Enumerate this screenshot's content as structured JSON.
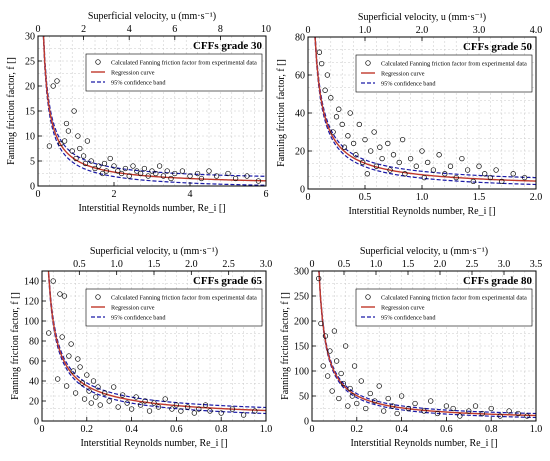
{
  "colors": {
    "regression": "#c0392b",
    "confidence": "#1a1aa6",
    "points": "#000000",
    "grid": "#c8c8c8"
  },
  "chart_data": [
    {
      "type": "scatter",
      "title": "CFFs grade 30",
      "xlabel": "Interstitial Reynolds number, Re_i []",
      "ylabel": "Fanning friction factor, f []",
      "top_xlabel": "Superficial velocity, u (mm·s⁻¹)",
      "xlim": [
        0,
        6
      ],
      "ylim": [
        0,
        30
      ],
      "xticks": [
        0,
        2,
        4,
        6
      ],
      "yticks": [
        0,
        5,
        10,
        15,
        20,
        25,
        30
      ],
      "top_xlim": [
        0,
        10
      ],
      "top_xticks": [
        0,
        2,
        4,
        6,
        8,
        10
      ],
      "grid": true,
      "legend_position": "top-right",
      "legend": {
        "points": "Calculated Fanning friction factor from experimental data",
        "regression": "Regression curve",
        "confidence": "95% confidence band"
      },
      "regression": {
        "a": 5.2,
        "b": 0.9,
        "band": 0.9
      },
      "series": [
        {
          "name": "Calculated Fanning friction factor from experimental data",
          "x": [
            0.3,
            0.4,
            0.5,
            0.6,
            0.7,
            0.75,
            0.8,
            0.9,
            0.95,
            1.0,
            1.05,
            1.1,
            1.2,
            1.25,
            1.3,
            1.4,
            1.5,
            1.6,
            1.7,
            1.75,
            1.8,
            1.9,
            2.0,
            2.1,
            2.2,
            2.3,
            2.4,
            2.5,
            2.6,
            2.7,
            2.8,
            2.9,
            3.0,
            3.1,
            3.2,
            3.3,
            3.4,
            3.5,
            3.6,
            3.8,
            4.0,
            4.2,
            4.3,
            4.5,
            4.7,
            5.0,
            5.2,
            5.5,
            5.8
          ],
          "y": [
            8.0,
            20.0,
            21.0,
            8.5,
            9.0,
            12.5,
            11.0,
            7.0,
            15.0,
            5.5,
            10.0,
            7.5,
            6.0,
            4.5,
            9.0,
            5.0,
            3.5,
            4.0,
            2.5,
            4.5,
            3.0,
            5.5,
            4.0,
            3.0,
            2.5,
            3.5,
            2.0,
            4.0,
            3.0,
            2.5,
            3.5,
            2.0,
            3.0,
            2.5,
            4.0,
            2.0,
            3.0,
            1.5,
            2.5,
            3.0,
            2.0,
            2.5,
            1.5,
            3.0,
            2.0,
            2.5,
            1.5,
            2.0,
            1.0
          ]
        }
      ]
    },
    {
      "type": "scatter",
      "title": "CFFs grade 50",
      "xlabel": "Interstitial Reynolds number, Re_i []",
      "ylabel": "Fanning friction factor, f []",
      "top_xlabel": "Superficial velocity, u (mm·s⁻¹)",
      "xlim": [
        0,
        2
      ],
      "ylim": [
        0,
        80
      ],
      "xticks": [
        0,
        0.5,
        1.0,
        1.5,
        2.0
      ],
      "yticks": [
        0,
        20,
        40,
        60,
        80
      ],
      "top_xlim": [
        0,
        4
      ],
      "top_xticks": [
        0,
        1.0,
        2.0,
        3.0,
        4.0
      ],
      "grid": true,
      "legend_position": "top-right",
      "legend": {
        "points": "Calculated Fanning friction factor from experimental data",
        "regression": "Regression curve",
        "confidence": "95% confidence band"
      },
      "regression": {
        "a": 7.5,
        "b": 0.85,
        "band": 1.8
      },
      "series": [
        {
          "name": "Calculated Fanning friction factor from experimental data",
          "x": [
            0.1,
            0.12,
            0.15,
            0.17,
            0.2,
            0.22,
            0.25,
            0.27,
            0.3,
            0.32,
            0.35,
            0.37,
            0.4,
            0.42,
            0.45,
            0.48,
            0.5,
            0.52,
            0.55,
            0.58,
            0.6,
            0.63,
            0.65,
            0.7,
            0.72,
            0.75,
            0.8,
            0.83,
            0.85,
            0.9,
            0.95,
            1.0,
            1.02,
            1.05,
            1.1,
            1.15,
            1.2,
            1.25,
            1.3,
            1.35,
            1.4,
            1.45,
            1.5,
            1.55,
            1.6,
            1.65,
            1.7,
            1.8,
            1.9
          ],
          "y": [
            72.0,
            66.0,
            52.0,
            60.0,
            48.0,
            30.0,
            38.0,
            42.0,
            34.0,
            22.0,
            28.0,
            40.0,
            24.0,
            18.0,
            34.0,
            14.0,
            26.0,
            8.0,
            20.0,
            30.0,
            12.0,
            22.0,
            16.0,
            24.0,
            10.0,
            18.0,
            14.0,
            26.0,
            8.0,
            16.0,
            12.0,
            20.0,
            6.0,
            14.0,
            10.0,
            18.0,
            8.0,
            12.0,
            6.0,
            16.0,
            10.0,
            4.0,
            12.0,
            8.0,
            6.0,
            10.0,
            4.0,
            8.0,
            6.0
          ]
        }
      ]
    },
    {
      "type": "scatter",
      "title": "CFFs grade 65",
      "xlabel": "Interstitial Reynolds number, Re_i []",
      "ylabel": "Fanning friction factor, f []",
      "top_xlabel": "Superficial velocity, u (mm·s⁻¹)",
      "xlim": [
        0,
        1
      ],
      "ylim": [
        0,
        150
      ],
      "xticks": [
        0,
        0.2,
        0.4,
        0.6,
        0.8,
        1.0
      ],
      "yticks": [
        0,
        20,
        40,
        60,
        80,
        100,
        120,
        140
      ],
      "top_xlim": [
        0,
        3
      ],
      "top_xticks": [
        0.5,
        1.0,
        1.5,
        2.0,
        2.5,
        3.0
      ],
      "grid": true,
      "legend_position": "top-right",
      "legend": {
        "points": "Calculated Fanning friction factor from experimental data",
        "regression": "Regression curve",
        "confidence": "95% confidence band"
      },
      "regression": {
        "a": 10.5,
        "b": 0.75,
        "band": 3.0
      },
      "series": [
        {
          "name": "Calculated Fanning friction factor from experimental data",
          "x": [
            0.03,
            0.05,
            0.07,
            0.08,
            0.09,
            0.1,
            0.11,
            0.12,
            0.13,
            0.14,
            0.15,
            0.16,
            0.17,
            0.18,
            0.19,
            0.2,
            0.21,
            0.22,
            0.23,
            0.24,
            0.25,
            0.26,
            0.28,
            0.3,
            0.32,
            0.34,
            0.36,
            0.38,
            0.4,
            0.42,
            0.44,
            0.46,
            0.48,
            0.5,
            0.52,
            0.55,
            0.58,
            0.6,
            0.62,
            0.65,
            0.68,
            0.7,
            0.73,
            0.75,
            0.8,
            0.85,
            0.9,
            0.95
          ],
          "y": [
            88.0,
            140.0,
            42.0,
            127.0,
            84.0,
            125.0,
            35.0,
            65.0,
            77.0,
            50.0,
            28.0,
            62.0,
            54.0,
            38.0,
            22.0,
            46.0,
            30.0,
            18.0,
            40.0,
            24.0,
            34.0,
            16.0,
            28.0,
            20.0,
            34.0,
            14.0,
            26.0,
            18.0,
            12.0,
            24.0,
            16.0,
            20.0,
            10.0,
            18.0,
            14.0,
            22.0,
            12.0,
            16.0,
            10.0,
            14.0,
            8.0,
            12.0,
            16.0,
            10.0,
            8.0,
            12.0,
            6.0,
            10.0
          ]
        }
      ]
    },
    {
      "type": "scatter",
      "title": "CFFs grade 80",
      "xlabel": "Interstitial Reynolds number, Re_i []",
      "ylabel": "Fanning friction factor, f []",
      "top_xlabel": "Superficial velocity, u (mm·s⁻¹)",
      "xlim": [
        0,
        1
      ],
      "ylim": [
        0,
        300
      ],
      "xticks": [
        0,
        0.2,
        0.4,
        0.6,
        0.8,
        1.0
      ],
      "yticks": [
        0,
        50,
        100,
        150,
        200,
        250,
        300
      ],
      "top_xlim": [
        0,
        3.5
      ],
      "top_xticks": [
        0,
        0.5,
        1.0,
        1.5,
        2.0,
        2.5,
        3.0,
        3.5
      ],
      "grid": true,
      "legend_position": "top-right",
      "legend": {
        "points": "Calculated Fanning friction factor from experimental data",
        "regression": "Regression curve",
        "confidence": "95% confidence band"
      },
      "regression": {
        "a": 11.0,
        "b": 0.95,
        "band": 4.0
      },
      "series": [
        {
          "name": "Calculated Fanning friction factor from experimental data",
          "x": [
            0.03,
            0.04,
            0.05,
            0.06,
            0.07,
            0.08,
            0.09,
            0.1,
            0.11,
            0.12,
            0.13,
            0.14,
            0.15,
            0.16,
            0.17,
            0.18,
            0.19,
            0.2,
            0.22,
            0.24,
            0.26,
            0.28,
            0.3,
            0.32,
            0.34,
            0.36,
            0.38,
            0.4,
            0.43,
            0.46,
            0.5,
            0.53,
            0.56,
            0.6,
            0.63,
            0.66,
            0.7,
            0.73,
            0.76,
            0.8,
            0.84,
            0.88,
            0.92,
            0.96
          ],
          "y": [
            285.0,
            195.0,
            110.0,
            170.0,
            90.0,
            140.0,
            60.0,
            180.0,
            120.0,
            45.0,
            95.0,
            75.0,
            150.0,
            30.0,
            65.0,
            50.0,
            110.0,
            35.0,
            80.0,
            25.0,
            55.0,
            40.0,
            70.0,
            20.0,
            45.0,
            30.0,
            15.0,
            50.0,
            25.0,
            35.0,
            20.0,
            40.0,
            15.0,
            30.0,
            25.0,
            10.0,
            20.0,
            30.0,
            15.0,
            25.0,
            10.0,
            20.0,
            15.0,
            10.0
          ]
        }
      ]
    }
  ]
}
